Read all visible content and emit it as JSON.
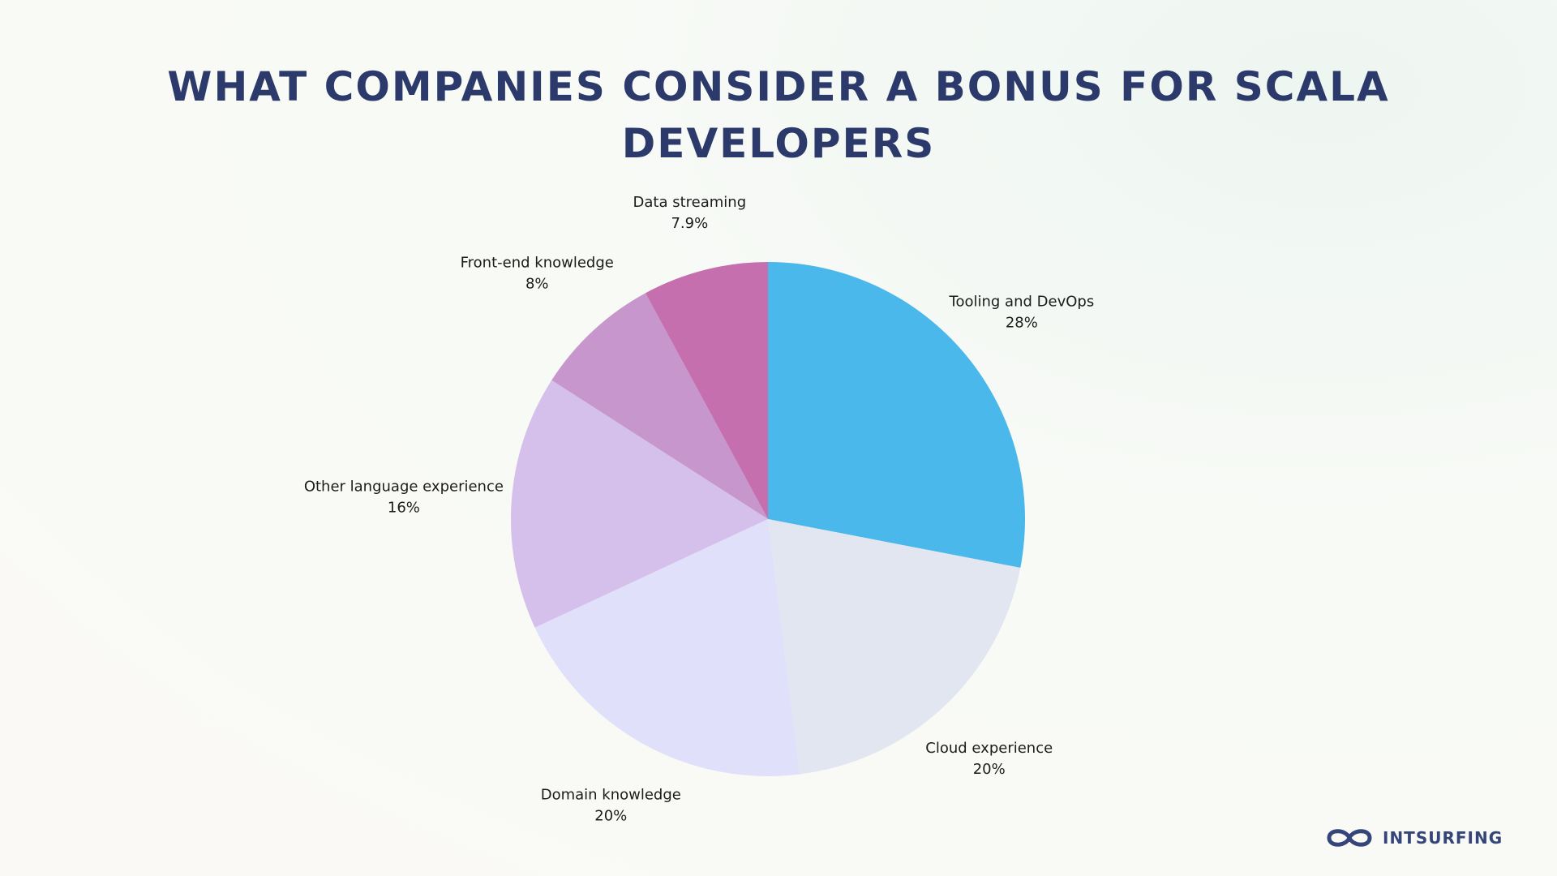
{
  "chart_data": {
    "type": "pie",
    "title": "WHAT COMPANIES CONSIDER A BONUS FOR SCALA DEVELOPERS",
    "slices": [
      {
        "label": "Tooling and DevOps",
        "value": 28,
        "value_label": "28%",
        "color": "#4ab8ea"
      },
      {
        "label": "Cloud experience",
        "value": 20,
        "value_label": "20%",
        "color": "#e1e6f0"
      },
      {
        "label": "Domain knowledge",
        "value": 20,
        "value_label": "20%",
        "color": "#e0e0fa"
      },
      {
        "label": "Other language experience",
        "value": 16,
        "value_label": "16%",
        "color": "#d5c0ec"
      },
      {
        "label": "Front-end knowledge",
        "value": 8,
        "value_label": "8%",
        "color": "#c796cc"
      },
      {
        "label": "Data streaming",
        "value": 7.9,
        "value_label": "7.9%",
        "color": "#c66fae"
      }
    ]
  },
  "brand": {
    "name": "INTSURFING",
    "icon": "infinity-logo-icon",
    "color": "#34457a"
  }
}
